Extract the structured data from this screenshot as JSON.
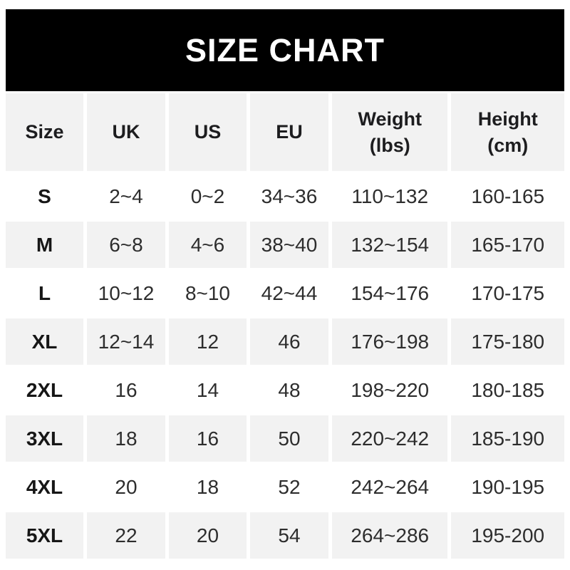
{
  "title": "SIZE CHART",
  "colors": {
    "banner_bg": "#000000",
    "banner_text": "#ffffff",
    "stripe_bg": "#f2f2f2",
    "text": "#2d2d2d"
  },
  "chart_data": {
    "type": "table",
    "title": "SIZE CHART",
    "columns": [
      "Size",
      "UK",
      "US",
      "EU",
      "Weight (lbs)",
      "Height (cm)"
    ],
    "rows": [
      [
        "S",
        "2~4",
        "0~2",
        "34~36",
        "110~132",
        "160-165"
      ],
      [
        "M",
        "6~8",
        "4~6",
        "38~40",
        "132~154",
        "165-170"
      ],
      [
        "L",
        "10~12",
        "8~10",
        "42~44",
        "154~176",
        "170-175"
      ],
      [
        "XL",
        "12~14",
        "12",
        "46",
        "176~198",
        "175-180"
      ],
      [
        "2XL",
        "16",
        "14",
        "48",
        "198~220",
        "180-185"
      ],
      [
        "3XL",
        "18",
        "16",
        "50",
        "220~242",
        "185-190"
      ],
      [
        "4XL",
        "20",
        "18",
        "52",
        "242~264",
        "190-195"
      ],
      [
        "5XL",
        "22",
        "20",
        "54",
        "264~286",
        "195-200"
      ]
    ]
  },
  "table": {
    "headers": [
      "Size",
      "UK",
      "US",
      "EU",
      "Weight\n(lbs)",
      "Height\n(cm)"
    ],
    "rows": [
      {
        "size": "S",
        "uk": "2~4",
        "us": "0~2",
        "eu": "34~36",
        "weight": "110~132",
        "height": "160-165"
      },
      {
        "size": "M",
        "uk": "6~8",
        "us": "4~6",
        "eu": "38~40",
        "weight": "132~154",
        "height": "165-170"
      },
      {
        "size": "L",
        "uk": "10~12",
        "us": "8~10",
        "eu": "42~44",
        "weight": "154~176",
        "height": "170-175"
      },
      {
        "size": "XL",
        "uk": "12~14",
        "us": "12",
        "eu": "46",
        "weight": "176~198",
        "height": "175-180"
      },
      {
        "size": "2XL",
        "uk": "16",
        "us": "14",
        "eu": "48",
        "weight": "198~220",
        "height": "180-185"
      },
      {
        "size": "3XL",
        "uk": "18",
        "us": "16",
        "eu": "50",
        "weight": "220~242",
        "height": "185-190"
      },
      {
        "size": "4XL",
        "uk": "20",
        "us": "18",
        "eu": "52",
        "weight": "242~264",
        "height": "190-195"
      },
      {
        "size": "5XL",
        "uk": "22",
        "us": "20",
        "eu": "54",
        "weight": "264~286",
        "height": "195-200"
      }
    ]
  }
}
